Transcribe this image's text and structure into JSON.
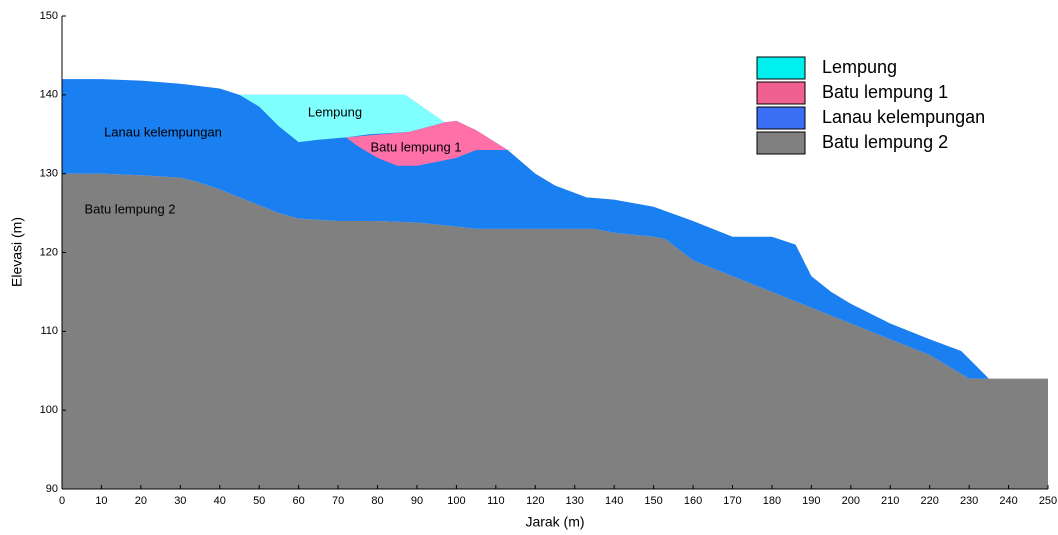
{
  "chart_data": {
    "type": "area",
    "xlabel": "Jarak (m)",
    "ylabel": "Elevasi (m)",
    "xlim": [
      0,
      250
    ],
    "ylim": [
      90,
      150
    ],
    "xticks": [
      0,
      10,
      20,
      30,
      40,
      50,
      60,
      70,
      80,
      90,
      100,
      110,
      120,
      130,
      140,
      150,
      160,
      170,
      180,
      190,
      200,
      210,
      220,
      230,
      240,
      250
    ],
    "yticks": [
      90,
      100,
      110,
      120,
      130,
      140,
      150
    ],
    "legend": "upper right",
    "annotations": [
      "Lempung",
      "Batu lempung 1",
      "Lanau kelempungan",
      "Batu lempung 2"
    ],
    "series": [
      {
        "name": "Lempung",
        "color": "#80ffff",
        "x": [
          45,
          87,
          97,
          88,
          78,
          72,
          65,
          60,
          55,
          50
        ],
        "y": [
          140,
          140,
          136.5,
          135.3,
          135,
          134.6,
          134.3,
          134,
          136,
          138.5
        ]
      },
      {
        "name": "Batu lempung 1",
        "color": "#ff6fa8",
        "x": [
          72,
          88,
          97,
          100,
          105,
          113,
          105,
          100,
          95,
          90,
          85,
          80,
          75
        ],
        "y": [
          134.6,
          135.3,
          136.5,
          136.7,
          135.5,
          133,
          133,
          132,
          131.5,
          131,
          131,
          132,
          133.5
        ]
      },
      {
        "name": "Lanau kelempungan",
        "color": "#1a7ff0",
        "x": [
          0,
          10,
          20,
          30,
          40,
          45,
          87,
          97,
          100,
          105,
          113,
          120,
          125,
          133,
          140,
          150,
          160,
          170,
          180,
          186,
          190,
          195,
          200,
          210,
          220,
          228,
          235,
          240,
          240,
          230,
          220,
          210,
          200,
          190,
          180,
          170,
          160,
          153,
          150,
          140,
          135,
          120,
          105,
          100,
          90,
          80,
          70,
          60,
          55,
          50,
          45,
          40,
          34,
          30,
          20,
          10,
          0
        ],
        "y": [
          142,
          142,
          141.8,
          141.4,
          140.8,
          140,
          140,
          136.5,
          136.7,
          135.5,
          133,
          130,
          128.5,
          127,
          126.7,
          125.8,
          124,
          122,
          122,
          121,
          117,
          115,
          113.5,
          111,
          109,
          107.5,
          104,
          104,
          104,
          104,
          107,
          109,
          111,
          113,
          115,
          117,
          119,
          121.7,
          122,
          122.5,
          123,
          123,
          123,
          123.3,
          123.8,
          124,
          124,
          124.3,
          125,
          126,
          127,
          128,
          129,
          129.5,
          129.8,
          130,
          130
        ]
      },
      {
        "name": "Batu lempung 2",
        "color": "#808080",
        "x": [
          0,
          10,
          20,
          30,
          34,
          40,
          45,
          50,
          55,
          60,
          70,
          80,
          90,
          100,
          105,
          120,
          135,
          140,
          150,
          153,
          160,
          170,
          180,
          190,
          200,
          210,
          220,
          230,
          240,
          250,
          250,
          0
        ],
        "y": [
          130,
          130,
          129.8,
          129.5,
          129,
          128,
          127,
          126,
          125,
          124.3,
          124,
          124,
          123.8,
          123.3,
          123,
          123,
          123,
          122.5,
          122,
          121.7,
          119,
          117,
          115,
          113,
          111,
          109,
          107,
          104,
          104,
          104,
          90,
          90
        ]
      }
    ]
  }
}
